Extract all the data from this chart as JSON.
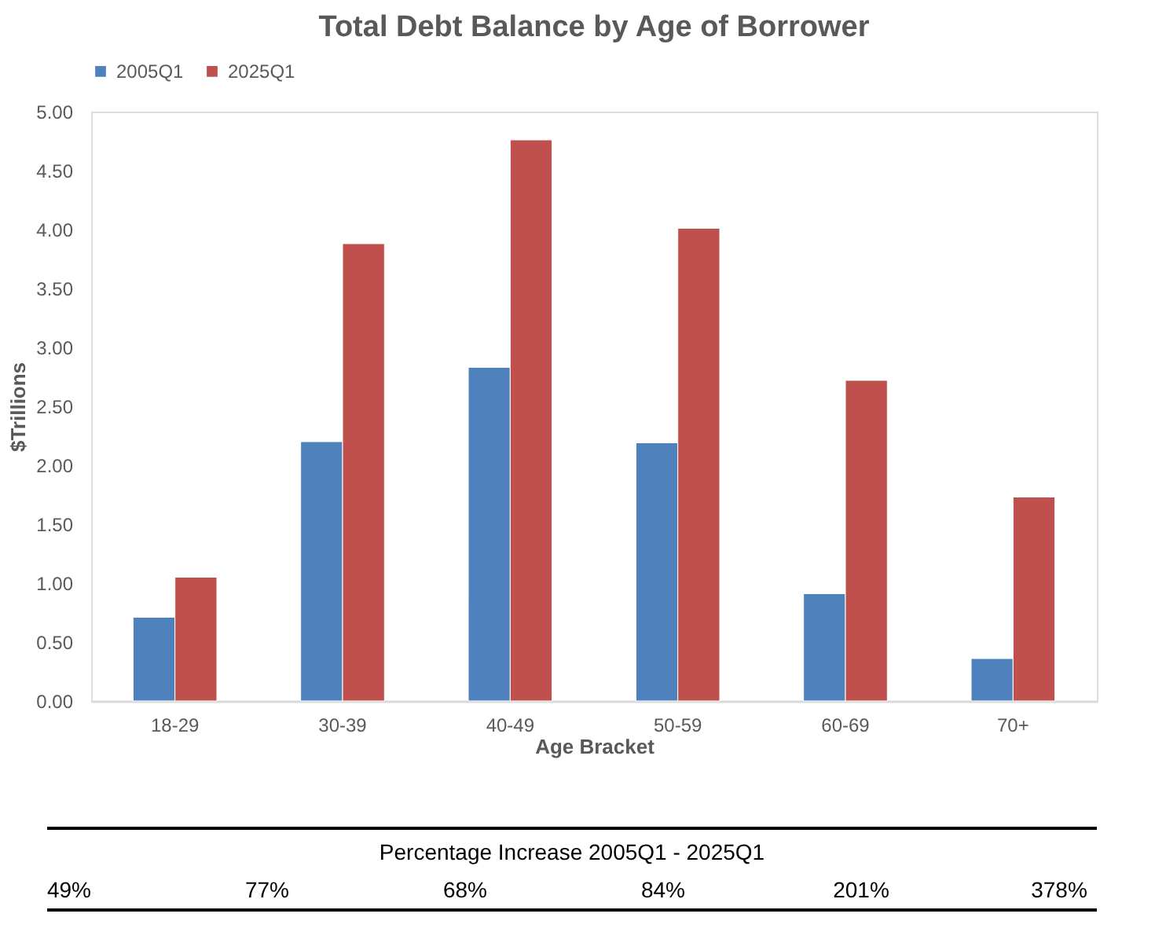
{
  "chart_data": {
    "type": "bar",
    "title": "Total Debt Balance by Age of Borrower",
    "xlabel": "Age Bracket",
    "ylabel": "$Trillions",
    "categories": [
      "18-29",
      "30-39",
      "40-49",
      "50-59",
      "60-69",
      "70+"
    ],
    "series": [
      {
        "name": "2005Q1",
        "color": "#4f81bd",
        "values": [
          0.71,
          2.2,
          2.83,
          2.19,
          0.91,
          0.36
        ]
      },
      {
        "name": "2025Q1",
        "color": "#c0504d",
        "values": [
          1.05,
          3.88,
          4.76,
          4.01,
          2.72,
          1.73
        ]
      }
    ],
    "ylim": [
      0,
      5
    ],
    "yticks": [
      {
        "value": 0,
        "label": "0.00"
      },
      {
        "value": 0.5,
        "label": "0.50"
      },
      {
        "value": 1,
        "label": "1.00"
      },
      {
        "value": 1.5,
        "label": "1.50"
      },
      {
        "value": 2,
        "label": "2.00"
      },
      {
        "value": 2.5,
        "label": "2.50"
      },
      {
        "value": 3,
        "label": "3.00"
      },
      {
        "value": 3.5,
        "label": "3.50"
      },
      {
        "value": 4,
        "label": "4.00"
      },
      {
        "value": 4.5,
        "label": "4.50"
      },
      {
        "value": 5,
        "label": "5.00"
      }
    ],
    "grid": false,
    "legend": "top",
    "annotations": [
      "Percentage Increase 2005Q1 - 2025Q1",
      "49%",
      "77%",
      "68%",
      "84%",
      "201%",
      "378%"
    ]
  }
}
